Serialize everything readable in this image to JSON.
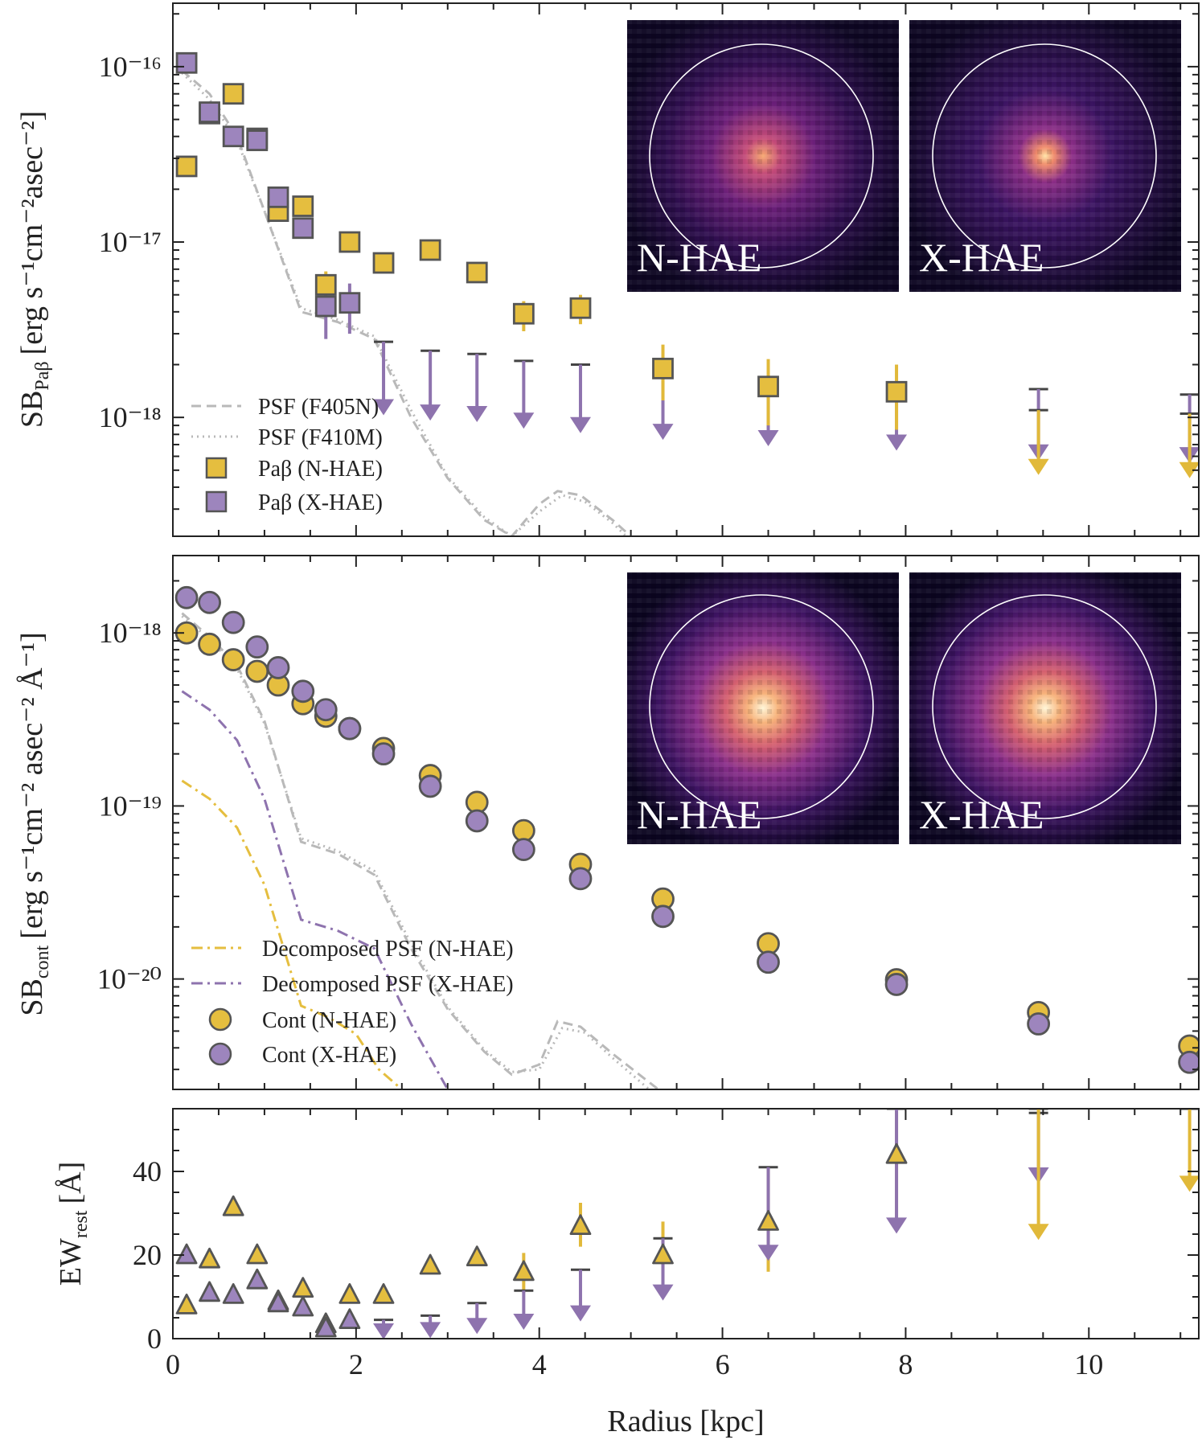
{
  "colors": {
    "nhae": "#E5BE3F",
    "xhae": "#9D85BD",
    "nhae_arrow": "#E1B93A",
    "xhae_arrow": "#8E73AE",
    "psf": "#B9B9B9",
    "edge": "#555555",
    "decomp_n": "#E5BE3F",
    "decomp_x": "#8E73AE"
  },
  "chart_data": [
    {
      "panel": "top",
      "type": "scatter",
      "ylabel_main": "SB",
      "ylabel_sub": "Paβ",
      "ylabel_unit": "[erg s⁻¹cm⁻²asec⁻²]",
      "yscale": "log",
      "ylim": [
        2.1e-19,
        2.3e-16
      ],
      "xlim": [
        0,
        11.2
      ],
      "ytick_labels": [
        "10⁻¹⁶",
        "10⁻¹⁷",
        "10⁻¹⁸"
      ],
      "ytick_values": [
        1e-16,
        1e-17,
        1e-18
      ],
      "legend": [
        "PSF (F405N)",
        "PSF (F410M)",
        "Paβ (N-HAE)",
        "Paβ (X-HAE)"
      ],
      "insets": [
        "N-HAE",
        "X-HAE"
      ],
      "psf_f405n": {
        "x": [
          0.1,
          0.4,
          0.7,
          1.0,
          1.4,
          1.8,
          2.2,
          2.6,
          3.0,
          3.4,
          3.7,
          4.0,
          4.2,
          4.45,
          4.8,
          5.0
        ],
        "y": [
          9.5e-17,
          7e-17,
          4e-17,
          1.5e-17,
          4e-18,
          3.5e-18,
          2.8e-18,
          1e-18,
          4.5e-19,
          2.6e-19,
          2.1e-19,
          3.2e-19,
          3.8e-19,
          3.6e-19,
          2.6e-19,
          2.1e-19
        ]
      },
      "psf_f410m": {
        "x": [
          0.1,
          0.4,
          0.7,
          1.0,
          1.4,
          1.8,
          2.2,
          2.6,
          3.0,
          3.4,
          3.7,
          4.0,
          4.25,
          4.5,
          4.8,
          4.95
        ],
        "y": [
          9.2e-17,
          6.5e-17,
          3.8e-17,
          1.5e-17,
          4.2e-18,
          3.6e-18,
          2.9e-18,
          1.1e-18,
          4.6e-19,
          2.7e-19,
          2.1e-19,
          2.9e-19,
          3.6e-19,
          3.3e-19,
          2.5e-19,
          2.1e-19
        ]
      },
      "nhae": {
        "x": [
          0.15,
          0.4,
          0.66,
          0.92,
          1.15,
          1.42,
          1.67,
          1.93,
          2.3,
          2.81,
          3.32,
          3.83,
          4.45,
          5.35,
          6.5,
          7.9
        ],
        "y": [
          2.7e-17,
          5.4e-17,
          7e-17,
          3.9e-17,
          1.5e-17,
          1.6e-17,
          5.7e-18,
          1e-17,
          7.6e-18,
          9e-18,
          6.7e-18,
          3.9e-18,
          4.2e-18,
          1.9e-18,
          1.5e-18,
          1.4e-18
        ],
        "yerr_low": [
          0,
          0,
          0,
          0,
          0,
          0,
          4.5e-18,
          0,
          0,
          0,
          0,
          3.1e-18,
          3.4e-18,
          1.25e-18,
          9e-19,
          8.5e-19
        ],
        "yerr_high": [
          0,
          0,
          0,
          0,
          0,
          0,
          6.8e-18,
          0,
          0,
          0,
          0,
          4.6e-18,
          5e-18,
          2.6e-18,
          2.15e-18,
          2e-18
        ]
      },
      "xhae": {
        "x": [
          0.15,
          0.4,
          0.66,
          0.92,
          1.15,
          1.42,
          1.67,
          1.93
        ],
        "y": [
          1.05e-16,
          5.5e-17,
          4e-17,
          3.8e-17,
          1.8e-17,
          1.2e-17,
          4.3e-18,
          4.5e-18
        ],
        "yerr_low": [
          0,
          0,
          0,
          0,
          0,
          0,
          2.8e-18,
          3e-18
        ],
        "yerr_high": [
          0,
          0,
          0,
          0,
          0,
          0,
          5.5e-18,
          5.8e-18
        ]
      },
      "xhae_upper_limits": {
        "x": [
          2.3,
          2.81,
          3.32,
          3.83,
          4.45,
          5.35,
          6.5,
          7.9,
          9.45,
          11.1
        ],
        "y": [
          2.7e-18,
          2.4e-18,
          2.3e-18,
          2.1e-18,
          2e-18,
          1.75e-18,
          1.6e-18,
          1.55e-18,
          1.45e-18,
          1.35e-18
        ],
        "tip": [
          1.05e-18,
          9.8e-19,
          9.6e-19,
          8.8e-19,
          8.3e-19,
          7.6e-19,
          7e-19,
          6.6e-19,
          5.8e-19,
          5.6e-19
        ]
      },
      "nhae_upper_limits": {
        "x": [
          9.45,
          11.1
        ],
        "y": [
          1.1e-18,
          1.05e-18
        ],
        "tip": [
          4.8e-19,
          4.6e-19
        ]
      }
    },
    {
      "panel": "middle",
      "type": "scatter",
      "ylabel_main": "SB",
      "ylabel_sub": "cont",
      "ylabel_unit": "[erg s⁻¹cm⁻² asec⁻² Å⁻¹]",
      "yscale": "log",
      "ylim": [
        2.3e-21,
        2.8e-18
      ],
      "xlim": [
        0,
        11.2
      ],
      "ytick_labels": [
        "10⁻¹⁸",
        "10⁻¹⁹",
        "10⁻²⁰"
      ],
      "ytick_values": [
        1e-18,
        1e-19,
        1e-20
      ],
      "legend": [
        "Decomposed PSF (N-HAE)",
        "Decomposed PSF (X-HAE)",
        "Cont (N-HAE)",
        "Cont (X-HAE)"
      ],
      "insets": [
        "N-HAE",
        "X-HAE"
      ],
      "psf_f405n": {
        "x": [
          0.1,
          0.4,
          0.7,
          1.0,
          1.4,
          1.8,
          2.2,
          2.6,
          3.0,
          3.4,
          3.7,
          4.0,
          4.2,
          4.45,
          4.8,
          5.3
        ],
        "y": [
          1.3e-18,
          9.5e-19,
          6.5e-19,
          3.1e-19,
          6.2e-20,
          5.3e-20,
          4e-20,
          1.5e-20,
          6.7e-21,
          3.8e-21,
          2.8e-21,
          3.2e-21,
          5.7e-21,
          5.3e-21,
          3.7e-21,
          2.3e-21
        ]
      },
      "psf_f410m": {
        "x": [
          0.1,
          0.4,
          0.7,
          1.0,
          1.4,
          1.8,
          2.2,
          2.6,
          3.0,
          3.4,
          3.7,
          4.0,
          4.25,
          4.5,
          4.8,
          5.2
        ],
        "y": [
          1.25e-18,
          9.2e-19,
          6.2e-19,
          3e-19,
          6.5e-20,
          5.5e-20,
          4.2e-20,
          1.6e-20,
          6.9e-21,
          3.9e-21,
          2.9e-21,
          3e-21,
          5.2e-21,
          4.9e-21,
          3.5e-21,
          2.3e-21
        ]
      },
      "decomposed_nhae": {
        "x": [
          0.1,
          0.4,
          0.7,
          1.0,
          1.4,
          1.7,
          2.0,
          2.25,
          2.5
        ],
        "y": [
          1.4e-19,
          1.1e-19,
          7.5e-20,
          3.5e-20,
          7e-21,
          6e-21,
          4.8e-21,
          3e-21,
          2.3e-21
        ]
      },
      "decomposed_xhae": {
        "x": [
          0.1,
          0.4,
          0.7,
          1.0,
          1.4,
          1.8,
          2.2,
          2.6,
          3.0
        ],
        "y": [
          4.6e-19,
          3.6e-19,
          2.4e-19,
          1.1e-19,
          2.2e-20,
          1.9e-20,
          1.5e-20,
          5.5e-21,
          2.3e-21
        ]
      },
      "nhae": {
        "x": [
          0.15,
          0.4,
          0.66,
          0.92,
          1.15,
          1.42,
          1.67,
          1.93,
          2.3,
          2.81,
          3.32,
          3.83,
          4.45,
          5.35,
          6.5,
          7.9,
          9.45,
          11.1
        ],
        "y": [
          1e-18,
          8.6e-19,
          7e-19,
          6e-19,
          5e-19,
          3.9e-19,
          3.3e-19,
          2.8e-19,
          2.15e-19,
          1.5e-19,
          1.05e-19,
          7.2e-20,
          4.6e-20,
          2.9e-20,
          1.6e-20,
          9.9e-21,
          6.4e-21,
          4.1e-21
        ]
      },
      "xhae": {
        "x": [
          0.15,
          0.4,
          0.66,
          0.92,
          1.15,
          1.42,
          1.67,
          1.93,
          2.3,
          2.81,
          3.32,
          3.83,
          4.45,
          5.35,
          6.5,
          7.9,
          9.45,
          11.1
        ],
        "y": [
          1.6e-18,
          1.5e-18,
          1.15e-18,
          8.3e-19,
          6.3e-19,
          4.6e-19,
          3.6e-19,
          2.8e-19,
          2e-19,
          1.3e-19,
          8.2e-20,
          5.6e-20,
          3.8e-20,
          2.3e-20,
          1.25e-20,
          9.3e-21,
          5.5e-21,
          3.3e-21
        ]
      }
    },
    {
      "panel": "bottom",
      "type": "scatter",
      "ylabel_main": "EW",
      "ylabel_sub": "rest",
      "ylabel_unit": "[Å]",
      "yscale": "linear",
      "ylim": [
        0,
        55
      ],
      "xlim": [
        0,
        11.2
      ],
      "xlabel": "Radius [kpc]",
      "ytick_labels": [
        "0",
        "20",
        "40"
      ],
      "ytick_values": [
        0,
        20,
        40
      ],
      "xtick_labels": [
        "0",
        "2",
        "4",
        "6",
        "8",
        "10"
      ],
      "xtick_values": [
        0,
        2,
        4,
        6,
        8,
        10
      ],
      "nhae": {
        "x": [
          0.15,
          0.4,
          0.66,
          0.92,
          1.15,
          1.42,
          1.67,
          1.93,
          2.3,
          2.81,
          3.32,
          3.83,
          4.45,
          5.35,
          6.5,
          7.9
        ],
        "y": [
          8,
          19,
          31.5,
          20,
          9,
          12,
          3.5,
          10.5,
          10.5,
          17.5,
          19.5,
          16,
          27,
          20,
          28,
          44
        ],
        "yerr_low": [
          0,
          0,
          0,
          0,
          0,
          0,
          0,
          0,
          0,
          0,
          0,
          11,
          22,
          13,
          16,
          29
        ],
        "yerr_high": [
          0,
          0,
          0,
          0,
          0,
          0,
          0,
          0,
          0,
          0,
          0,
          20.5,
          32.5,
          28,
          41,
          55
        ]
      },
      "xhae": {
        "x": [
          0.15,
          0.4,
          0.66,
          0.92,
          1.15,
          1.42,
          1.67,
          1.93
        ],
        "y": [
          20,
          11,
          10.5,
          14,
          8.5,
          7.5,
          2.5,
          4.5
        ]
      },
      "xhae_upper_limits": {
        "x": [
          2.3,
          2.81,
          3.32,
          3.83,
          4.45,
          5.35,
          6.5,
          7.9,
          9.45
        ],
        "y": [
          4.5,
          5.5,
          8.5,
          11.5,
          16.5,
          24,
          41,
          55,
          54
        ],
        "tip": [
          0.2,
          0.5,
          1.5,
          2.5,
          4.5,
          9.5,
          19,
          25.5,
          37.5
        ]
      },
      "nhae_upper_limits": {
        "x": [
          9.45,
          11.1
        ],
        "y": [
          55,
          55
        ],
        "tip": [
          24,
          35.5
        ]
      }
    }
  ]
}
